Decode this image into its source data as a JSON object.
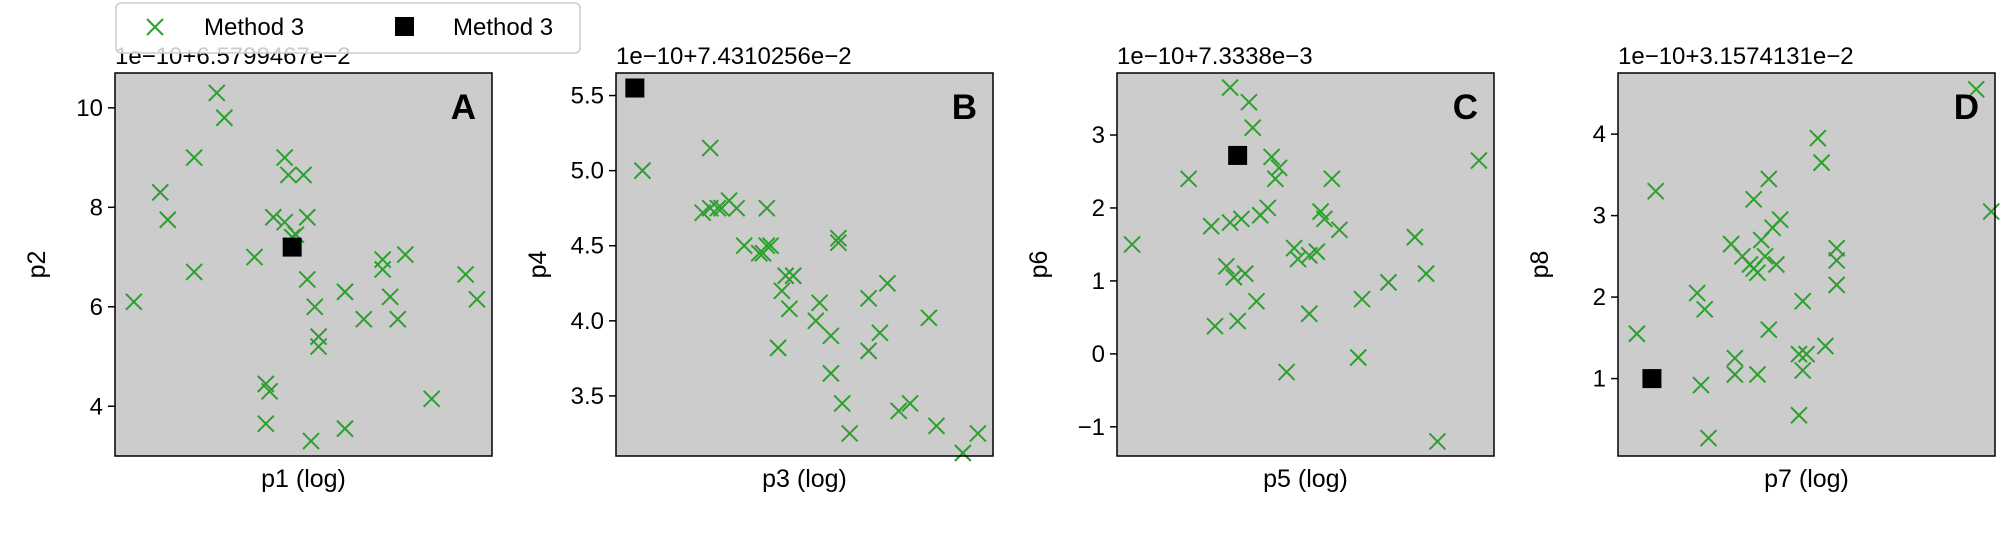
{
  "legend": {
    "placement": "top-left",
    "entries": [
      {
        "label": "Method 3",
        "marker": "x",
        "color": "#2ca02c"
      },
      {
        "label": "Method 3",
        "marker": "square",
        "color": "#000000"
      }
    ]
  },
  "colors": {
    "panel_bg": "#cccccc",
    "cross": "#2ca02c",
    "square": "#000000"
  },
  "chart_data": [
    {
      "type": "scatter",
      "panel_label": "A",
      "xlabel": "p1 (log)",
      "ylabel": "p2",
      "y_offset_text": "1e−10+6.5799467e−2",
      "xscale": "log",
      "xlim": [
        0.0,
        1.0
      ],
      "ylim": [
        3.0,
        10.7
      ],
      "yticks": [
        4,
        6,
        8,
        10
      ],
      "yticklabels": [
        "4",
        "6",
        "8",
        "10"
      ],
      "series": [
        {
          "marker": "x",
          "points": [
            [
              0.05,
              6.1
            ],
            [
              0.12,
              8.3
            ],
            [
              0.14,
              7.75
            ],
            [
              0.21,
              6.7
            ],
            [
              0.21,
              9.0
            ],
            [
              0.27,
              10.3
            ],
            [
              0.29,
              9.8
            ],
            [
              0.37,
              7.0
            ],
            [
              0.4,
              4.45
            ],
            [
              0.4,
              3.65
            ],
            [
              0.41,
              4.3
            ],
            [
              0.42,
              7.8
            ],
            [
              0.45,
              7.7
            ],
            [
              0.45,
              9.0
            ],
            [
              0.46,
              8.65
            ],
            [
              0.47,
              7.4
            ],
            [
              0.48,
              7.45
            ],
            [
              0.5,
              8.65
            ],
            [
              0.51,
              7.8
            ],
            [
              0.51,
              6.55
            ],
            [
              0.53,
              6.0
            ],
            [
              0.54,
              5.4
            ],
            [
              0.54,
              5.2
            ],
            [
              0.52,
              3.3
            ],
            [
              0.61,
              3.55
            ],
            [
              0.61,
              6.3
            ],
            [
              0.66,
              5.75
            ],
            [
              0.71,
              6.95
            ],
            [
              0.71,
              6.75
            ],
            [
              0.73,
              6.2
            ],
            [
              0.75,
              5.75
            ],
            [
              0.77,
              7.05
            ],
            [
              0.84,
              4.15
            ],
            [
              0.93,
              6.65
            ],
            [
              0.96,
              6.15
            ]
          ]
        },
        {
          "marker": "square",
          "points": [
            [
              0.47,
              7.2
            ]
          ]
        }
      ]
    },
    {
      "type": "scatter",
      "panel_label": "B",
      "xlabel": "p3 (log)",
      "ylabel": "p4",
      "y_offset_text": "1e−10+7.4310256e−2",
      "xscale": "log",
      "xlim": [
        0.0,
        1.0
      ],
      "ylim": [
        3.1,
        5.65
      ],
      "yticks": [
        3.5,
        4.0,
        4.5,
        5.0,
        5.5
      ],
      "yticklabels": [
        "3.5",
        "4.0",
        "4.5",
        "5.0",
        "5.5"
      ],
      "series": [
        {
          "marker": "x",
          "points": [
            [
              0.07,
              5.0
            ],
            [
              0.23,
              4.72
            ],
            [
              0.25,
              4.75
            ],
            [
              0.25,
              5.15
            ],
            [
              0.27,
              4.75
            ],
            [
              0.28,
              4.75
            ],
            [
              0.3,
              4.8
            ],
            [
              0.32,
              4.75
            ],
            [
              0.34,
              4.5
            ],
            [
              0.38,
              4.45
            ],
            [
              0.39,
              4.45
            ],
            [
              0.4,
              4.75
            ],
            [
              0.4,
              4.5
            ],
            [
              0.41,
              4.5
            ],
            [
              0.43,
              3.82
            ],
            [
              0.44,
              4.2
            ],
            [
              0.45,
              4.3
            ],
            [
              0.46,
              4.08
            ],
            [
              0.47,
              4.3
            ],
            [
              0.53,
              4.0
            ],
            [
              0.54,
              4.12
            ],
            [
              0.57,
              3.9
            ],
            [
              0.57,
              3.65
            ],
            [
              0.59,
              4.55
            ],
            [
              0.59,
              4.52
            ],
            [
              0.6,
              3.45
            ],
            [
              0.62,
              3.25
            ],
            [
              0.67,
              4.15
            ],
            [
              0.67,
              3.8
            ],
            [
              0.7,
              3.92
            ],
            [
              0.72,
              4.25
            ],
            [
              0.75,
              3.4
            ],
            [
              0.78,
              3.45
            ],
            [
              0.83,
              4.02
            ],
            [
              0.85,
              3.3
            ],
            [
              0.92,
              3.12
            ],
            [
              0.96,
              3.25
            ]
          ]
        },
        {
          "marker": "square",
          "points": [
            [
              0.05,
              5.55
            ]
          ]
        }
      ]
    },
    {
      "type": "scatter",
      "panel_label": "C",
      "xlabel": "p5 (log)",
      "ylabel": "p6",
      "y_offset_text": "1e−10+7.3338e−3",
      "xscale": "log",
      "xlim": [
        0.0,
        1.0
      ],
      "ylim": [
        -1.4,
        3.85
      ],
      "yticks": [
        -1,
        0,
        1,
        2,
        3
      ],
      "yticklabels": [
        "−1",
        "0",
        "1",
        "2",
        "3"
      ],
      "series": [
        {
          "marker": "x",
          "points": [
            [
              0.04,
              1.5
            ],
            [
              0.19,
              2.4
            ],
            [
              0.25,
              1.75
            ],
            [
              0.26,
              0.38
            ],
            [
              0.29,
              1.2
            ],
            [
              0.3,
              1.8
            ],
            [
              0.3,
              3.65
            ],
            [
              0.31,
              1.05
            ],
            [
              0.32,
              0.45
            ],
            [
              0.33,
              1.85
            ],
            [
              0.34,
              1.1
            ],
            [
              0.35,
              3.45
            ],
            [
              0.36,
              3.1
            ],
            [
              0.37,
              0.72
            ],
            [
              0.38,
              1.9
            ],
            [
              0.4,
              2.0
            ],
            [
              0.41,
              2.7
            ],
            [
              0.42,
              2.4
            ],
            [
              0.43,
              2.55
            ],
            [
              0.45,
              -0.25
            ],
            [
              0.47,
              1.45
            ],
            [
              0.48,
              1.3
            ],
            [
              0.51,
              0.55
            ],
            [
              0.51,
              1.35
            ],
            [
              0.53,
              1.4
            ],
            [
              0.54,
              1.95
            ],
            [
              0.55,
              1.85
            ],
            [
              0.57,
              2.4
            ],
            [
              0.59,
              1.7
            ],
            [
              0.64,
              -0.05
            ],
            [
              0.65,
              0.75
            ],
            [
              0.72,
              0.98
            ],
            [
              0.79,
              1.6
            ],
            [
              0.82,
              1.1
            ],
            [
              0.85,
              -1.2
            ],
            [
              0.96,
              2.65
            ]
          ]
        },
        {
          "marker": "square",
          "points": [
            [
              0.32,
              2.72
            ]
          ]
        }
      ]
    },
    {
      "type": "scatter",
      "panel_label": "D",
      "xlabel": "p7 (log)",
      "ylabel": "p8",
      "y_offset_text": "1e−10+3.1574131e−2",
      "xscale": "log",
      "xlim": [
        0.0,
        1.0
      ],
      "ylim": [
        0.05,
        4.75
      ],
      "yticks": [
        1,
        2,
        3,
        4
      ],
      "yticklabels": [
        "1",
        "2",
        "3",
        "4"
      ],
      "series": [
        {
          "marker": "x",
          "points": [
            [
              0.05,
              1.55
            ],
            [
              0.1,
              3.3
            ],
            [
              0.21,
              2.05
            ],
            [
              0.22,
              0.92
            ],
            [
              0.23,
              1.85
            ],
            [
              0.24,
              0.27
            ],
            [
              0.3,
              2.65
            ],
            [
              0.31,
              1.25
            ],
            [
              0.31,
              1.05
            ],
            [
              0.33,
              2.5
            ],
            [
              0.35,
              2.4
            ],
            [
              0.36,
              3.2
            ],
            [
              0.36,
              2.35
            ],
            [
              0.37,
              2.3
            ],
            [
              0.37,
              1.05
            ],
            [
              0.38,
              2.7
            ],
            [
              0.39,
              2.5
            ],
            [
              0.4,
              1.6
            ],
            [
              0.4,
              3.45
            ],
            [
              0.41,
              2.85
            ],
            [
              0.42,
              2.4
            ],
            [
              0.43,
              2.95
            ],
            [
              0.48,
              0.55
            ],
            [
              0.48,
              1.3
            ],
            [
              0.49,
              1.95
            ],
            [
              0.49,
              1.1
            ],
            [
              0.5,
              1.3
            ],
            [
              0.53,
              3.95
            ],
            [
              0.54,
              3.65
            ],
            [
              0.55,
              1.4
            ],
            [
              0.58,
              2.6
            ],
            [
              0.58,
              2.45
            ],
            [
              0.58,
              2.15
            ],
            [
              0.95,
              4.55
            ],
            [
              0.99,
              3.05
            ]
          ]
        },
        {
          "marker": "square",
          "points": [
            [
              0.09,
              1.0
            ]
          ]
        }
      ]
    }
  ]
}
